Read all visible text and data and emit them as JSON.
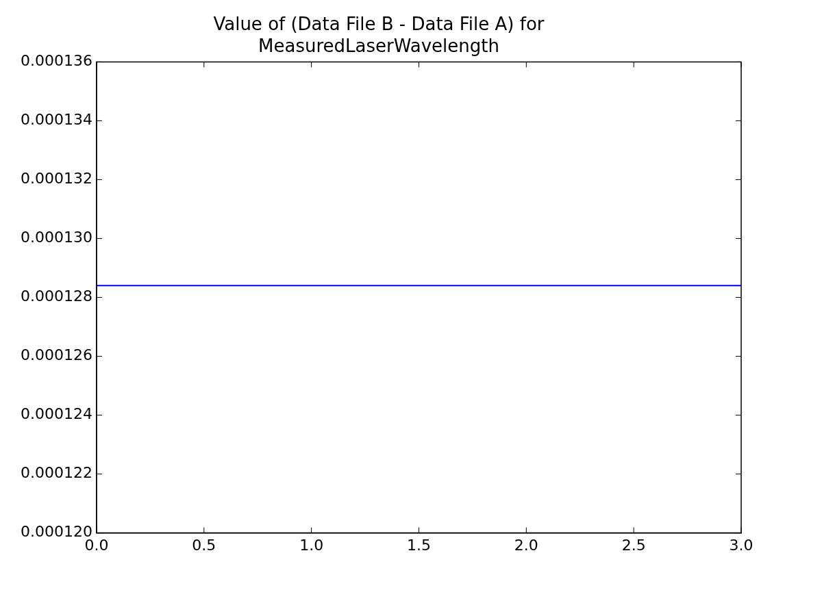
{
  "chart_data": {
    "type": "line",
    "title": "Value of (Data File B - Data File A) for\nMeasuredLaserWavelength",
    "x": [
      0,
      3
    ],
    "series": [
      {
        "color": "#0000ff",
        "values": [
          0.0001284,
          0.0001284
        ]
      }
    ],
    "xlim": [
      0,
      3
    ],
    "xticks": [
      {
        "value": 0,
        "label": "0.0"
      },
      {
        "value": 0.5,
        "label": "0.5"
      },
      {
        "value": 1,
        "label": "1.0"
      },
      {
        "value": 1.5,
        "label": "1.5"
      },
      {
        "value": 2,
        "label": "2.0"
      },
      {
        "value": 2.5,
        "label": "2.5"
      },
      {
        "value": 3,
        "label": "3.0"
      }
    ],
    "ylim": [
      0.00012,
      0.000136
    ],
    "yticks": [
      {
        "value": 0.00012,
        "label": "0.000120"
      },
      {
        "value": 0.000122,
        "label": "0.000122"
      },
      {
        "value": 0.000124,
        "label": "0.000124"
      },
      {
        "value": 0.000126,
        "label": "0.000126"
      },
      {
        "value": 0.000128,
        "label": "0.000128"
      },
      {
        "value": 0.00013,
        "label": "0.000130"
      },
      {
        "value": 0.000132,
        "label": "0.000132"
      },
      {
        "value": 0.000134,
        "label": "0.000134"
      },
      {
        "value": 0.000136,
        "label": "0.000136"
      }
    ],
    "legend": false,
    "marker": "none",
    "line_style": "solid"
  }
}
